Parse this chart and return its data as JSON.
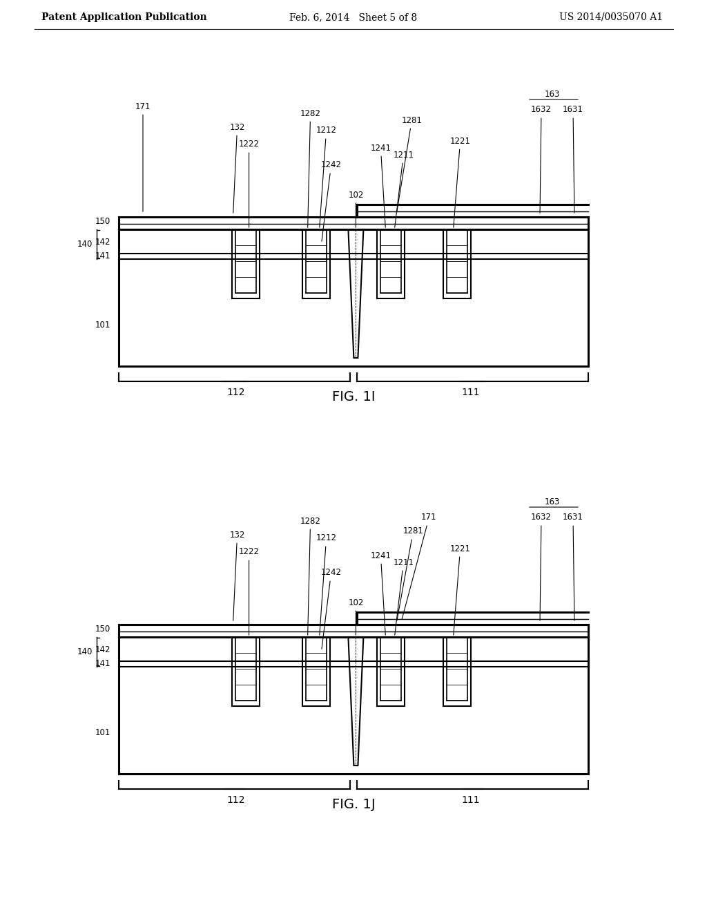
{
  "bg_color": "#ffffff",
  "line_color": "#000000",
  "header_left": "Patent Application Publication",
  "header_center": "Feb. 6, 2014   Sheet 5 of 8",
  "header_right": "US 2014/0035070 A1",
  "fig1i_label": "FIG. 1I",
  "fig1j_label": "FIG. 1J",
  "font_size_header": 10,
  "font_size_fig": 14,
  "font_size_ref": 9
}
